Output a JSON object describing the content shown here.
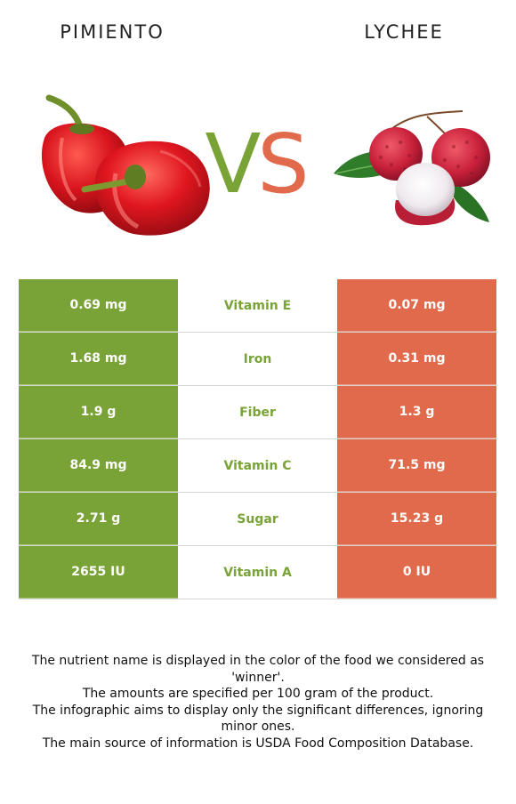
{
  "header": {
    "left_food": "PIMIENTO",
    "right_food": "LYCHEE",
    "vs_v": "V",
    "vs_s": "S"
  },
  "colors": {
    "winner_left": "#7aa337",
    "winner_right": "#e06a4b"
  },
  "comparison": [
    {
      "left": "0.69 mg",
      "nutrient": "Vitamin E",
      "right": "0.07 mg"
    },
    {
      "left": "1.68 mg",
      "nutrient": "Iron",
      "right": "0.31 mg"
    },
    {
      "left": "1.9 g",
      "nutrient": "Fiber",
      "right": "1.3 g"
    },
    {
      "left": "84.9 mg",
      "nutrient": "Vitamin C",
      "right": "71.5 mg"
    },
    {
      "left": "2.71 g",
      "nutrient": "Sugar",
      "right": "15.23 g"
    },
    {
      "left": "2655 IU",
      "nutrient": "Vitamin A",
      "right": "0 IU"
    }
  ],
  "footnotes": [
    "The nutrient name is displayed in the color of the food we considered as 'winner'.",
    "The amounts are specified per 100 gram of the product.",
    "The infographic aims to display only the significant differences, ignoring minor ones.",
    "The main source of information is USDA Food Composition Database."
  ]
}
